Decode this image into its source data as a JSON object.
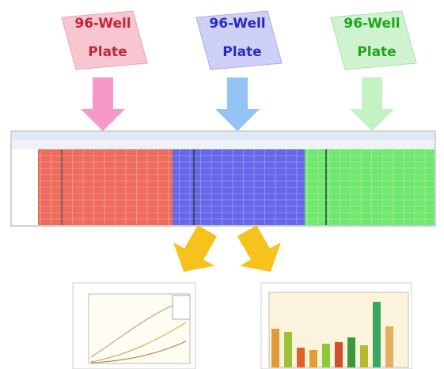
{
  "plates": [
    {
      "line1": "96-Well",
      "line2": "Plate"
    },
    {
      "line1": "96-Well",
      "line2": "Plate"
    },
    {
      "line1": "96-Well",
      "line2": "Plate"
    }
  ]
}
